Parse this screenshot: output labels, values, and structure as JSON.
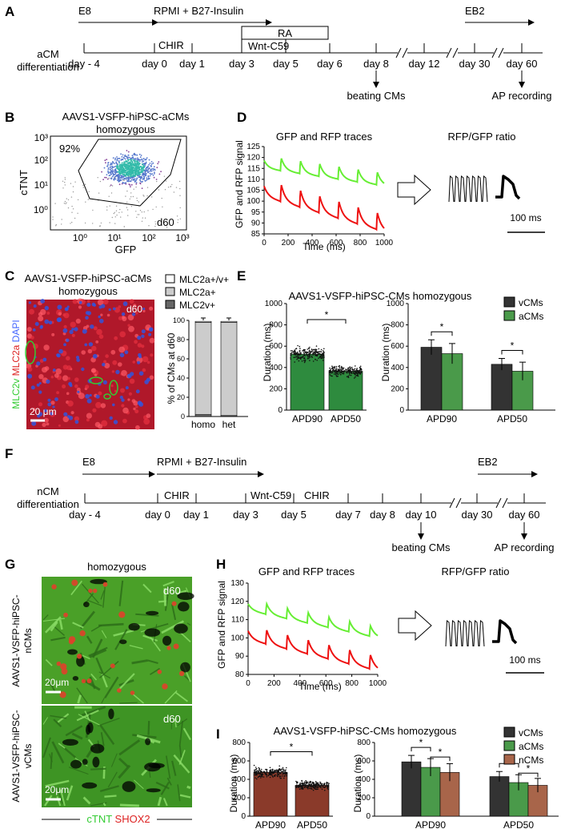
{
  "panels": {
    "A": "A",
    "B": "B",
    "C": "C",
    "D": "D",
    "E": "E",
    "F": "F",
    "G": "G",
    "H": "H",
    "I": "I"
  },
  "panelA": {
    "left_label_1": "aCM",
    "left_label_2": "differentiation",
    "e8": "E8",
    "rpmi": "RPMI + B27-Insulin",
    "eb2": "EB2",
    "chir": "CHIR",
    "ra": "RA",
    "wnt": "Wnt-C59",
    "days": [
      "day - 4",
      "day 0",
      "day 1",
      "day 3",
      "day 5",
      "day 6",
      "day 8",
      "day 12",
      "day 30",
      "day 60"
    ],
    "beating": "beating CMs",
    "ap": "AP recording"
  },
  "panelB": {
    "title_1": "AAVS1-VSFP-hiPSC-aCMs",
    "title_2": "homozygous",
    "ylabel": "cTNT",
    "xlabel": "GFP",
    "gate_pct": "92%",
    "day": "d60",
    "yticks": [
      "10³",
      "10²",
      "10¹",
      "10⁰"
    ],
    "xticks": [
      "10⁰",
      "10¹",
      "10²",
      "10³"
    ]
  },
  "panelC": {
    "title_1": "AAVS1-VSFP-hiPSC-aCMs",
    "title_2": "homozygous",
    "day": "d60",
    "scale": "20 μm",
    "stain_labels": [
      "MLC2v",
      "MLC2a",
      "DAPI"
    ],
    "colors": {
      "MLC2v": "#33cc33",
      "MLC2a": "#dd2222",
      "DAPI": "#4466ff"
    },
    "ylabel": "% of CMs at d60",
    "legend": [
      "MLC2a+/v+",
      "MLC2a+",
      "MLC2v+"
    ],
    "legend_colors": [
      "#ffffff",
      "#cccccc",
      "#666666"
    ],
    "yticks": [
      "0",
      "20",
      "40",
      "60",
      "80",
      "100"
    ],
    "categories": [
      "homo",
      "het"
    ]
  },
  "panelD": {
    "trace_title": "GFP and RFP traces",
    "ratio_title": "RFP/GFP ratio",
    "ylabel": "GFP and RFP signal",
    "xlabel": "Time (ms)",
    "yticks": [
      "85",
      "90",
      "95",
      "100",
      "105",
      "110",
      "115",
      "120",
      "125"
    ],
    "xticks": [
      "0",
      "200",
      "400",
      "600",
      "800",
      "1000"
    ],
    "scale": "100 ms",
    "colors": {
      "gfp": "#66ee33",
      "rfp": "#ee1111"
    }
  },
  "panelE": {
    "title": "AAVS1-VSFP-hiPSC-CMs homozygous",
    "ylabel": "Duration (ms)",
    "yticks": [
      "0",
      "200",
      "400",
      "600",
      "800",
      "1000"
    ],
    "left_categories": [
      "APD90",
      "APD50"
    ],
    "right_groups": [
      "APD90",
      "APD50"
    ],
    "legend": [
      "vCMs",
      "aCMs"
    ],
    "colors": {
      "vCMs": "#333333",
      "aCMs": "#4a9a4a",
      "nCMs": "#a8654a"
    },
    "star": "*"
  },
  "panelF": {
    "left_label_1": "nCM",
    "left_label_2": "differentiation",
    "e8": "E8",
    "rpmi": "RPMI + B27-Insulin",
    "eb2": "EB2",
    "chir1": "CHIR",
    "wnt": "Wnt-C59",
    "chir2": "CHIR",
    "days": [
      "day - 4",
      "day 0",
      "day 1",
      "day 3",
      "day 5",
      "day 7",
      "day 8",
      "day 10",
      "day 30",
      "day 60"
    ],
    "beating": "beating CMs",
    "ap": "AP recording"
  },
  "panelG": {
    "title": "homozygous",
    "top_label_1": "AAVS1-VSFP-hiPSC-",
    "top_label_2": "nCMs",
    "bottom_label_1": "AAVS1-VSFP-hiPSC-",
    "bottom_label_2": "vCMs",
    "day": "d60",
    "scale": "20μm",
    "stain_labels": [
      "cTNT",
      "SHOX2"
    ],
    "colors": {
      "cTNT": "#33cc33",
      "SHOX2": "#dd2222"
    }
  },
  "panelH": {
    "trace_title": "GFP and RFP traces",
    "ratio_title": "RFP/GFP ratio",
    "ylabel": "GFP and RFP signal",
    "xlabel": "Time (ms)",
    "yticks": [
      "80",
      "90",
      "100",
      "110",
      "120",
      "130"
    ],
    "xticks": [
      "0",
      "200",
      "400",
      "600",
      "800",
      "1000"
    ],
    "scale": "100 ms"
  },
  "panelI": {
    "title": "AAVS1-VSFP-hiPSC-CMs homozygous",
    "ylabel": "Duration (ms)",
    "left_yticks": [
      "0",
      "200",
      "400",
      "600",
      "800"
    ],
    "right_yticks": [
      "0",
      "200",
      "400",
      "600",
      "800"
    ],
    "left_categories": [
      "APD90",
      "APD50"
    ],
    "right_groups": [
      "APD90",
      "APD50"
    ],
    "legend": [
      "vCMs",
      "aCMs",
      "nCMs"
    ],
    "star": "*"
  },
  "chart_data": [
    {
      "id": "E-left",
      "type": "bar",
      "categories": [
        "APD90",
        "APD50"
      ],
      "values": [
        525,
        365
      ],
      "errors": [
        95,
        75
      ],
      "ylim": [
        0,
        1000
      ],
      "ylabel": "Duration (ms)",
      "significance": "*"
    },
    {
      "id": "E-right",
      "type": "bar",
      "categories": [
        "APD90",
        "APD50"
      ],
      "series": [
        {
          "name": "vCMs",
          "values": [
            590,
            430
          ],
          "errors": [
            70,
            55
          ]
        },
        {
          "name": "aCMs",
          "values": [
            530,
            365
          ],
          "errors": [
            95,
            85
          ]
        }
      ],
      "ylim": [
        0,
        1000
      ],
      "ylabel": "Duration (ms)"
    },
    {
      "id": "C-bar",
      "type": "bar",
      "categories": [
        "homo",
        "het"
      ],
      "series": [
        {
          "name": "MLC2a+/v+",
          "values": [
            1,
            1
          ]
        },
        {
          "name": "MLC2a+",
          "values": [
            96,
            97
          ]
        },
        {
          "name": "MLC2v+",
          "values": [
            2,
            1
          ]
        }
      ],
      "ylim": [
        0,
        100
      ],
      "ylabel": "% of CMs at d60"
    },
    {
      "id": "I-left",
      "type": "bar",
      "categories": [
        "APD90",
        "APD50"
      ],
      "values": [
        475,
        335
      ],
      "errors": [
        85,
        70
      ],
      "ylim": [
        0,
        800
      ],
      "ylabel": "Duration (ms)",
      "significance": "*"
    },
    {
      "id": "I-right",
      "type": "bar",
      "categories": [
        "APD90",
        "APD50"
      ],
      "series": [
        {
          "name": "vCMs",
          "values": [
            590,
            430
          ],
          "errors": [
            70,
            55
          ]
        },
        {
          "name": "aCMs",
          "values": [
            530,
            365
          ],
          "errors": [
            95,
            85
          ]
        },
        {
          "name": "nCMs",
          "values": [
            475,
            335
          ],
          "errors": [
            95,
            75
          ]
        }
      ],
      "ylim": [
        0,
        800
      ],
      "ylabel": "Duration (ms)"
    },
    {
      "id": "D-trace",
      "type": "line",
      "x_range": [
        0,
        1000
      ],
      "ylim": [
        85,
        125
      ],
      "xlabel": "Time (ms)",
      "ylabel": "GFP and RFP signal"
    },
    {
      "id": "H-trace",
      "type": "line",
      "x_range": [
        0,
        1000
      ],
      "ylim": [
        80,
        130
      ],
      "xlabel": "Time (ms)",
      "ylabel": "GFP and RFP signal"
    }
  ]
}
